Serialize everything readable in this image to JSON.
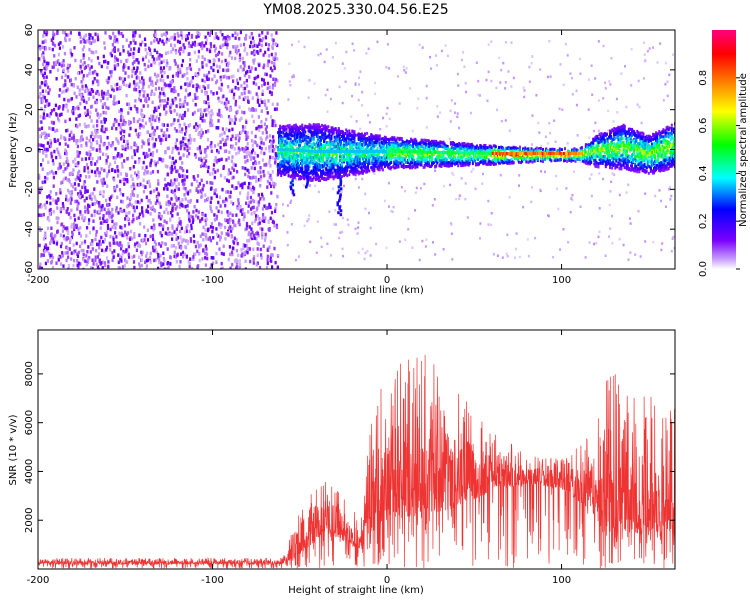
{
  "title": "YM08.2025.330.04.56.E25",
  "chart_data": [
    {
      "type": "heatmap",
      "name": "spectrogram",
      "xlabel": "Height of straight line (km)",
      "ylabel": "Frequency (Hz)",
      "xlim": [
        -200,
        165
      ],
      "ylim": [
        -60,
        60
      ],
      "xticks": [
        -200,
        -100,
        0,
        100
      ],
      "yticks": [
        -60,
        -40,
        -20,
        0,
        20,
        40,
        60
      ],
      "noise_region_x": [
        -200,
        -63
      ],
      "signal_ridge": [
        {
          "x": -63,
          "f": 0,
          "halfwidth": 8
        },
        {
          "x": -40,
          "f": -1,
          "halfwidth": 9
        },
        {
          "x": -20,
          "f": -1,
          "halfwidth": 7
        },
        {
          "x": 0,
          "f": -1,
          "halfwidth": 5
        },
        {
          "x": 30,
          "f": -1.5,
          "halfwidth": 4
        },
        {
          "x": 60,
          "f": -2,
          "halfwidth": 3
        },
        {
          "x": 90,
          "f": -2,
          "halfwidth": 2
        },
        {
          "x": 110,
          "f": -2,
          "halfwidth": 2
        },
        {
          "x": 120,
          "f": 0,
          "halfwidth": 5
        },
        {
          "x": 135,
          "f": 2,
          "halfwidth": 7
        },
        {
          "x": 150,
          "f": -2,
          "halfwidth": 6
        },
        {
          "x": 165,
          "f": 3,
          "halfwidth": 7
        }
      ],
      "colorbar": {
        "label": "Normalized spectral amplitude",
        "range": [
          0,
          1
        ],
        "ticks": [
          "0.0",
          "0.2",
          "0.4",
          "0.6",
          "0.8"
        ],
        "colors": [
          "#ffffff",
          "#7a00ff",
          "#0000ff",
          "#00ffff",
          "#00ff00",
          "#ffff00",
          "#ff8000",
          "#ff0000",
          "#ff0080"
        ]
      }
    },
    {
      "type": "line",
      "name": "snr",
      "xlabel": "Height of straight line (km)",
      "ylabel": "SNR (10 * v/v)",
      "xlim": [
        -200,
        165
      ],
      "ylim": [
        0,
        9800
      ],
      "xticks": [
        -200,
        -100,
        0,
        100
      ],
      "yticks": [
        2000,
        4000,
        6000,
        8000
      ],
      "color": "#ee3333",
      "envelope": [
        {
          "x": -200,
          "base": 200,
          "amp": 250
        },
        {
          "x": -60,
          "base": 200,
          "amp": 250
        },
        {
          "x": -50,
          "base": 600,
          "amp": 1800
        },
        {
          "x": -35,
          "base": 1500,
          "amp": 2500
        },
        {
          "x": -15,
          "base": 800,
          "amp": 1200
        },
        {
          "x": -10,
          "base": 1500,
          "amp": 5000
        },
        {
          "x": 0,
          "base": 2000,
          "amp": 6000
        },
        {
          "x": 20,
          "base": 2200,
          "amp": 7000
        },
        {
          "x": 40,
          "base": 2500,
          "amp": 5000
        },
        {
          "x": 60,
          "base": 3200,
          "amp": 2500
        },
        {
          "x": 80,
          "base": 3500,
          "amp": 1200
        },
        {
          "x": 100,
          "base": 3300,
          "amp": 1200
        },
        {
          "x": 115,
          "base": 2500,
          "amp": 3000
        },
        {
          "x": 125,
          "base": 1500,
          "amp": 7500
        },
        {
          "x": 140,
          "base": 1500,
          "amp": 6000
        },
        {
          "x": 165,
          "base": 1200,
          "amp": 5500
        }
      ]
    }
  ]
}
